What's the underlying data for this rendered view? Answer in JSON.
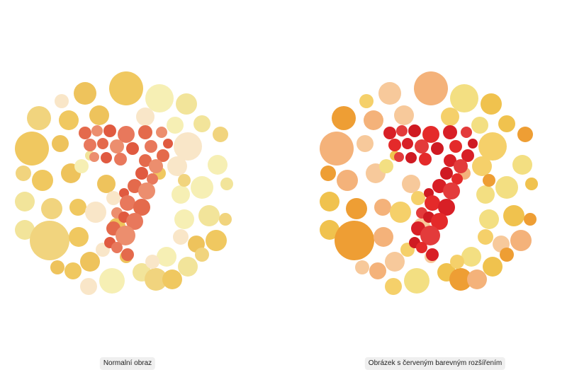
{
  "figures": [
    {
      "id": "normal",
      "caption": "Normalní obraz",
      "background_colors": [
        "#f6efb4",
        "#f2e49a",
        "#f1d47e",
        "#f0c860",
        "#eec35c",
        "#f9e6c8"
      ],
      "figure_colors": [
        "#e8785c",
        "#e46a4c",
        "#ec8e6e",
        "#e05a40"
      ]
    },
    {
      "id": "enhanced",
      "caption": "Obrázek s červeným barevným rozšířením",
      "background_colors": [
        "#f3df82",
        "#f0c24e",
        "#ee9e34",
        "#f4b27a",
        "#f7c99b",
        "#f5d06a"
      ],
      "figure_colors": [
        "#e42a2a",
        "#d81f26",
        "#e33b3b",
        "#cf1a22"
      ]
    }
  ],
  "plate_digit": "7"
}
